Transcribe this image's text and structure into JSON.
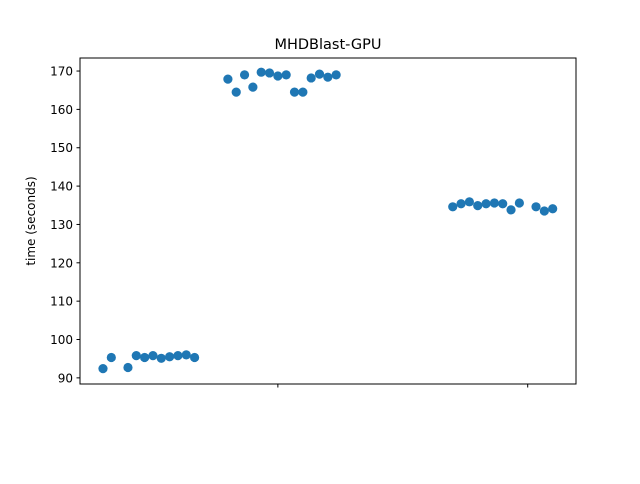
{
  "chart_data": {
    "type": "scatter",
    "title": "MHDBlast-GPU",
    "xlabel": "",
    "ylabel": "time (seconds)",
    "xlim": [
      -2.76,
      56.8
    ],
    "ylim": [
      88.4,
      173.4
    ],
    "xticks": [
      21,
      51
    ],
    "xtick_labels": [
      "",
      ""
    ],
    "yticks": [
      90,
      100,
      110,
      120,
      130,
      140,
      150,
      160,
      170
    ],
    "ytick_labels": [
      "90",
      "100",
      "110",
      "120",
      "130",
      "140",
      "150",
      "160",
      "170"
    ],
    "grid": false,
    "color": "#1f77b4",
    "x": [
      0,
      1,
      3,
      4,
      5,
      6,
      7,
      8,
      9,
      10,
      11,
      15,
      16,
      17,
      18,
      19,
      20,
      21,
      22,
      23,
      24,
      25,
      26,
      27,
      28,
      42,
      43,
      44,
      45,
      46,
      47,
      48,
      49,
      50,
      52,
      53,
      54
    ],
    "y": [
      92.4,
      95.3,
      92.7,
      95.8,
      95.3,
      95.8,
      95.1,
      95.5,
      95.8,
      96.0,
      95.3,
      167.9,
      164.5,
      169.0,
      165.8,
      169.7,
      169.5,
      168.7,
      169.0,
      164.5,
      164.5,
      168.2,
      169.2,
      168.4,
      169.0,
      134.6,
      135.4,
      135.9,
      134.9,
      135.4,
      135.6,
      135.4,
      133.8,
      135.6,
      134.6,
      133.5,
      134.1
    ]
  }
}
